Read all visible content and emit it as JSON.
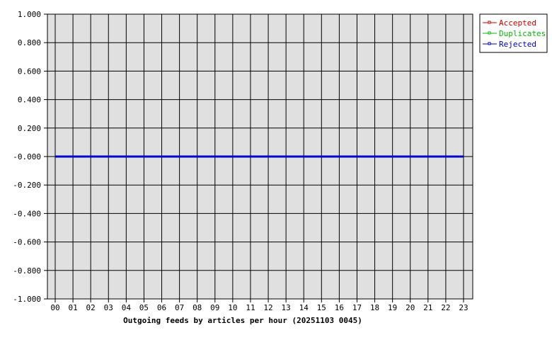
{
  "chart_data": {
    "type": "line",
    "title": "Outgoing feeds by articles per hour (20251103 0045)",
    "xlabel": "",
    "ylabel": "",
    "categories": [
      "00",
      "01",
      "02",
      "03",
      "04",
      "05",
      "06",
      "07",
      "08",
      "09",
      "10",
      "11",
      "12",
      "13",
      "14",
      "15",
      "16",
      "17",
      "18",
      "19",
      "20",
      "21",
      "22",
      "23"
    ],
    "y_tick_labels": [
      "1.000",
      "0.800",
      "0.600",
      "0.400",
      "0.200",
      "-0.000",
      "-0.200",
      "-0.400",
      "-0.600",
      "-0.800",
      "-1.000"
    ],
    "ylim": [
      -1,
      1
    ],
    "grid": true,
    "legend_placement": "top-right",
    "background_color": "#e0e0e0",
    "series": [
      {
        "name": "Accepted",
        "color": "#cc0000",
        "values": [
          0,
          0,
          0,
          0,
          0,
          0,
          0,
          0,
          0,
          0,
          0,
          0,
          0,
          0,
          0,
          0,
          0,
          0,
          0,
          0,
          0,
          0,
          0,
          0
        ]
      },
      {
        "name": "Duplicates",
        "color": "#00bb00",
        "values": [
          0,
          0,
          0,
          0,
          0,
          0,
          0,
          0,
          0,
          0,
          0,
          0,
          0,
          0,
          0,
          0,
          0,
          0,
          0,
          0,
          0,
          0,
          0,
          0
        ]
      },
      {
        "name": "Rejected",
        "color": "#0000cc",
        "values": [
          0,
          0,
          0,
          0,
          0,
          0,
          0,
          0,
          0,
          0,
          0,
          0,
          0,
          0,
          0,
          0,
          0,
          0,
          0,
          0,
          0,
          0,
          0,
          0
        ]
      }
    ]
  }
}
